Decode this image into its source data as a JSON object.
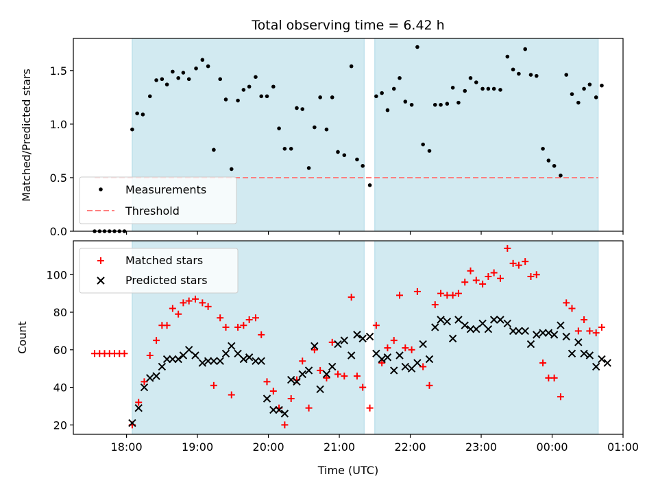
{
  "figure": {
    "title": "Total observing time = 6.42 h"
  },
  "colors": {
    "band": "#add8e6",
    "threshold": "#ff7f7f",
    "measurement": "#000000",
    "matched": "#ff0000",
    "predicted": "#000000"
  },
  "chart_data": [
    {
      "type": "scatter",
      "panel": "top",
      "title": "Total observing time = 6.42 h",
      "xlabel": "",
      "ylabel": "Matched/Predicted stars",
      "x_unit": "hours (UTC, continuing past midnight)",
      "xlim": [
        17.25,
        25.0
      ],
      "ylim": [
        0,
        1.8
      ],
      "yticks": [
        0.0,
        0.5,
        1.0,
        1.5
      ],
      "ytick_labels": [
        "0.0",
        "0.5",
        "1.0",
        "1.5"
      ],
      "grid": false,
      "legend_position": "lower-left",
      "legend": [
        "Measurements",
        "Threshold"
      ],
      "observing_windows": [
        [
          18.08,
          21.35
        ],
        [
          21.5,
          24.65
        ]
      ],
      "threshold": {
        "name": "Threshold",
        "value": 0.5,
        "x_range": [
          17.55,
          24.65
        ],
        "style": "dashed"
      },
      "series": [
        {
          "name": "Measurements",
          "marker": "dot",
          "points": [
            [
              17.55,
              0
            ],
            [
              17.62,
              0
            ],
            [
              17.69,
              0
            ],
            [
              17.76,
              0
            ],
            [
              17.83,
              0
            ],
            [
              17.9,
              0
            ],
            [
              17.97,
              0
            ],
            [
              18.08,
              0.95
            ],
            [
              18.15,
              1.1
            ],
            [
              18.23,
              1.09
            ],
            [
              18.33,
              1.26
            ],
            [
              18.42,
              1.41
            ],
            [
              18.5,
              1.42
            ],
            [
              18.57,
              1.37
            ],
            [
              18.65,
              1.49
            ],
            [
              18.73,
              1.43
            ],
            [
              18.8,
              1.48
            ],
            [
              18.88,
              1.42
            ],
            [
              18.98,
              1.52
            ],
            [
              19.07,
              1.6
            ],
            [
              19.15,
              1.54
            ],
            [
              19.23,
              0.76
            ],
            [
              19.32,
              1.42
            ],
            [
              19.4,
              1.23
            ],
            [
              19.48,
              0.58
            ],
            [
              19.57,
              1.22
            ],
            [
              19.65,
              1.32
            ],
            [
              19.73,
              1.35
            ],
            [
              19.82,
              1.44
            ],
            [
              19.9,
              1.26
            ],
            [
              19.98,
              1.26
            ],
            [
              20.07,
              1.35
            ],
            [
              20.15,
              0.96
            ],
            [
              20.23,
              0.77
            ],
            [
              20.32,
              0.77
            ],
            [
              20.4,
              1.15
            ],
            [
              20.48,
              1.14
            ],
            [
              20.57,
              0.59
            ],
            [
              20.65,
              0.97
            ],
            [
              20.73,
              1.25
            ],
            [
              20.82,
              0.95
            ],
            [
              20.9,
              1.25
            ],
            [
              20.98,
              0.74
            ],
            [
              21.07,
              0.71
            ],
            [
              21.17,
              1.54
            ],
            [
              21.25,
              0.67
            ],
            [
              21.33,
              0.61
            ],
            [
              21.43,
              0.43
            ],
            [
              21.52,
              1.26
            ],
            [
              21.6,
              1.29
            ],
            [
              21.68,
              1.13
            ],
            [
              21.77,
              1.33
            ],
            [
              21.85,
              1.43
            ],
            [
              21.93,
              1.21
            ],
            [
              22.02,
              1.18
            ],
            [
              22.1,
              1.72
            ],
            [
              22.18,
              0.81
            ],
            [
              22.27,
              0.75
            ],
            [
              22.35,
              1.18
            ],
            [
              22.43,
              1.18
            ],
            [
              22.52,
              1.19
            ],
            [
              22.6,
              1.34
            ],
            [
              22.68,
              1.2
            ],
            [
              22.77,
              1.31
            ],
            [
              22.85,
              1.43
            ],
            [
              22.93,
              1.39
            ],
            [
              23.02,
              1.33
            ],
            [
              23.1,
              1.33
            ],
            [
              23.18,
              1.33
            ],
            [
              23.27,
              1.32
            ],
            [
              23.37,
              1.63
            ],
            [
              23.45,
              1.51
            ],
            [
              23.53,
              1.47
            ],
            [
              23.62,
              1.7
            ],
            [
              23.7,
              1.46
            ],
            [
              23.78,
              1.45
            ],
            [
              23.87,
              0.77
            ],
            [
              23.95,
              0.66
            ],
            [
              24.03,
              0.61
            ],
            [
              24.12,
              0.52
            ],
            [
              24.2,
              1.46
            ],
            [
              24.28,
              1.28
            ],
            [
              24.37,
              1.2
            ],
            [
              24.45,
              1.33
            ],
            [
              24.53,
              1.37
            ],
            [
              24.62,
              1.25
            ],
            [
              24.7,
              1.36
            ]
          ]
        }
      ]
    },
    {
      "type": "scatter",
      "panel": "bottom",
      "xlabel": "Time (UTC)",
      "ylabel": "Count",
      "x_unit": "hours (UTC, continuing past midnight)",
      "xlim": [
        17.25,
        25.0
      ],
      "ylim": [
        15,
        118
      ],
      "xticks": [
        18,
        19,
        20,
        21,
        22,
        23,
        24,
        25
      ],
      "xtick_labels": [
        "18:00",
        "19:00",
        "20:00",
        "21:00",
        "22:00",
        "23:00",
        "00:00",
        "01:00"
      ],
      "yticks": [
        20,
        40,
        60,
        80,
        100
      ],
      "ytick_labels": [
        "20",
        "40",
        "60",
        "80",
        "100"
      ],
      "grid": false,
      "legend_position": "top-left",
      "legend": [
        "Matched stars",
        "Predicted stars"
      ],
      "observing_windows": [
        [
          18.08,
          21.35
        ],
        [
          21.5,
          24.65
        ]
      ],
      "series": [
        {
          "name": "Matched stars",
          "marker": "plus",
          "points": [
            [
              17.55,
              58
            ],
            [
              17.62,
              58
            ],
            [
              17.69,
              58
            ],
            [
              17.76,
              58
            ],
            [
              17.83,
              58
            ],
            [
              17.9,
              58
            ],
            [
              17.97,
              58
            ],
            [
              18.08,
              20
            ],
            [
              18.17,
              32
            ],
            [
              18.25,
              43
            ],
            [
              18.33,
              57
            ],
            [
              18.42,
              65
            ],
            [
              18.5,
              73
            ],
            [
              18.57,
              73
            ],
            [
              18.65,
              82
            ],
            [
              18.73,
              79
            ],
            [
              18.8,
              85
            ],
            [
              18.88,
              86
            ],
            [
              18.97,
              87
            ],
            [
              19.07,
              85
            ],
            [
              19.15,
              83
            ],
            [
              19.23,
              41
            ],
            [
              19.32,
              77
            ],
            [
              19.4,
              72
            ],
            [
              19.48,
              36
            ],
            [
              19.57,
              72
            ],
            [
              19.65,
              73
            ],
            [
              19.73,
              76
            ],
            [
              19.82,
              77
            ],
            [
              19.9,
              68
            ],
            [
              19.98,
              43
            ],
            [
              20.07,
              38
            ],
            [
              20.15,
              29
            ],
            [
              20.23,
              20
            ],
            [
              20.32,
              34
            ],
            [
              20.4,
              44
            ],
            [
              20.48,
              54
            ],
            [
              20.57,
              29
            ],
            [
              20.65,
              60
            ],
            [
              20.73,
              49
            ],
            [
              20.82,
              45
            ],
            [
              20.9,
              64
            ],
            [
              20.98,
              47
            ],
            [
              21.07,
              46
            ],
            [
              21.17,
              88
            ],
            [
              21.25,
              46
            ],
            [
              21.33,
              40
            ],
            [
              21.43,
              29
            ],
            [
              21.52,
              73
            ],
            [
              21.6,
              53
            ],
            [
              21.68,
              61
            ],
            [
              21.77,
              65
            ],
            [
              21.85,
              89
            ],
            [
              21.93,
              61
            ],
            [
              22.02,
              60
            ],
            [
              22.1,
              91
            ],
            [
              22.18,
              51
            ],
            [
              22.27,
              41
            ],
            [
              22.35,
              84
            ],
            [
              22.43,
              90
            ],
            [
              22.52,
              89
            ],
            [
              22.6,
              89
            ],
            [
              22.68,
              90
            ],
            [
              22.77,
              96
            ],
            [
              22.85,
              102
            ],
            [
              22.93,
              97
            ],
            [
              23.02,
              95
            ],
            [
              23.1,
              99
            ],
            [
              23.18,
              101
            ],
            [
              23.27,
              98
            ],
            [
              23.37,
              114
            ],
            [
              23.45,
              106
            ],
            [
              23.53,
              105
            ],
            [
              23.62,
              107
            ],
            [
              23.7,
              99
            ],
            [
              23.78,
              100
            ],
            [
              23.87,
              53
            ],
            [
              23.95,
              45
            ],
            [
              24.03,
              45
            ],
            [
              24.12,
              35
            ],
            [
              24.2,
              85
            ],
            [
              24.28,
              82
            ],
            [
              24.37,
              70
            ],
            [
              24.45,
              76
            ],
            [
              24.53,
              70
            ],
            [
              24.62,
              69
            ],
            [
              24.7,
              72
            ]
          ]
        },
        {
          "name": "Predicted stars",
          "marker": "x",
          "points": [
            [
              18.08,
              21
            ],
            [
              18.17,
              29
            ],
            [
              18.25,
              40
            ],
            [
              18.33,
              45
            ],
            [
              18.42,
              46
            ],
            [
              18.5,
              51
            ],
            [
              18.57,
              55
            ],
            [
              18.65,
              55
            ],
            [
              18.73,
              55
            ],
            [
              18.8,
              57
            ],
            [
              18.88,
              60
            ],
            [
              18.97,
              57
            ],
            [
              19.07,
              53
            ],
            [
              19.15,
              54
            ],
            [
              19.23,
              54
            ],
            [
              19.32,
              54
            ],
            [
              19.4,
              58
            ],
            [
              19.48,
              62
            ],
            [
              19.57,
              58
            ],
            [
              19.65,
              55
            ],
            [
              19.73,
              56
            ],
            [
              19.82,
              54
            ],
            [
              19.9,
              54
            ],
            [
              19.98,
              34
            ],
            [
              20.07,
              28
            ],
            [
              20.15,
              28
            ],
            [
              20.23,
              26
            ],
            [
              20.32,
              44
            ],
            [
              20.4,
              43
            ],
            [
              20.48,
              47
            ],
            [
              20.57,
              49
            ],
            [
              20.65,
              62
            ],
            [
              20.73,
              39
            ],
            [
              20.82,
              47
            ],
            [
              20.9,
              51
            ],
            [
              20.98,
              63
            ],
            [
              21.07,
              65
            ],
            [
              21.17,
              57
            ],
            [
              21.25,
              68
            ],
            [
              21.33,
              66
            ],
            [
              21.43,
              67
            ],
            [
              21.52,
              58
            ],
            [
              21.6,
              55
            ],
            [
              21.68,
              56
            ],
            [
              21.77,
              49
            ],
            [
              21.85,
              57
            ],
            [
              21.93,
              51
            ],
            [
              22.02,
              50
            ],
            [
              22.1,
              53
            ],
            [
              22.18,
              63
            ],
            [
              22.27,
              55
            ],
            [
              22.35,
              72
            ],
            [
              22.43,
              76
            ],
            [
              22.52,
              75
            ],
            [
              22.6,
              66
            ],
            [
              22.68,
              76
            ],
            [
              22.77,
              73
            ],
            [
              22.85,
              71
            ],
            [
              22.93,
              71
            ],
            [
              23.02,
              74
            ],
            [
              23.1,
              71
            ],
            [
              23.18,
              76
            ],
            [
              23.27,
              76
            ],
            [
              23.37,
              74
            ],
            [
              23.45,
              70
            ],
            [
              23.53,
              70
            ],
            [
              23.62,
              70
            ],
            [
              23.7,
              63
            ],
            [
              23.78,
              68
            ],
            [
              23.87,
              69
            ],
            [
              23.95,
              69
            ],
            [
              24.03,
              68
            ],
            [
              24.12,
              73
            ],
            [
              24.2,
              67
            ],
            [
              24.28,
              58
            ],
            [
              24.37,
              64
            ],
            [
              24.45,
              58
            ],
            [
              24.53,
              57
            ],
            [
              24.62,
              51
            ],
            [
              24.7,
              55
            ],
            [
              24.78,
              53
            ]
          ]
        }
      ]
    }
  ]
}
